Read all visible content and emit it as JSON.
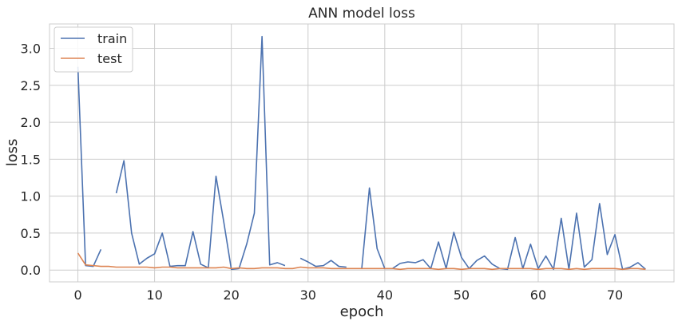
{
  "chart_data": {
    "type": "line",
    "title": "ANN model loss",
    "xlabel": "epoch",
    "ylabel": "loss",
    "xlim": [
      -3.7,
      77.7
    ],
    "ylim": [
      -0.16,
      3.33
    ],
    "xticks": [
      0,
      10,
      20,
      30,
      40,
      50,
      60,
      70
    ],
    "yticks": [
      0.0,
      0.5,
      1.0,
      1.5,
      2.0,
      2.5,
      3.0
    ],
    "ytick_labels": [
      "0.0",
      "0.5",
      "1.0",
      "1.5",
      "2.0",
      "2.5",
      "3.0"
    ],
    "grid": true,
    "legend": {
      "position": "top-left"
    },
    "series": [
      {
        "name": "train",
        "color": "#4c72b0",
        "values": [
          2.75,
          0.06,
          0.05,
          0.28,
          null,
          1.04,
          1.48,
          0.5,
          0.08,
          0.16,
          0.22,
          0.5,
          0.05,
          0.06,
          0.06,
          0.52,
          0.08,
          0.03,
          1.27,
          0.66,
          0.01,
          0.02,
          0.35,
          0.77,
          3.16,
          0.07,
          0.1,
          0.06,
          null,
          0.16,
          0.11,
          0.05,
          0.06,
          0.13,
          0.05,
          0.04,
          null,
          0.02,
          1.11,
          0.29,
          0.02,
          0.02,
          0.09,
          0.11,
          0.1,
          0.14,
          0.02,
          0.38,
          0.02,
          0.51,
          0.17,
          0.02,
          0.13,
          0.19,
          0.08,
          0.02,
          0.01,
          0.44,
          0.02,
          0.35,
          0.02,
          0.19,
          0.01,
          0.7,
          0.01,
          0.77,
          0.04,
          0.14,
          0.9,
          0.21,
          0.48,
          0.01,
          0.04,
          0.1,
          0.01
        ]
      },
      {
        "name": "test",
        "color": "#dd8452",
        "values": [
          0.23,
          0.07,
          0.06,
          0.05,
          0.05,
          0.04,
          0.04,
          0.04,
          0.04,
          0.04,
          0.03,
          0.04,
          0.04,
          0.03,
          0.03,
          0.03,
          0.03,
          0.03,
          0.03,
          0.04,
          0.02,
          0.03,
          0.02,
          0.02,
          0.03,
          0.03,
          0.03,
          0.02,
          0.02,
          0.04,
          0.03,
          0.03,
          0.03,
          0.02,
          0.02,
          0.02,
          0.02,
          0.02,
          0.02,
          0.02,
          0.02,
          0.02,
          0.01,
          0.02,
          0.02,
          0.02,
          0.02,
          0.01,
          0.02,
          0.02,
          0.01,
          0.02,
          0.02,
          0.02,
          0.01,
          0.02,
          0.02,
          0.02,
          0.02,
          0.02,
          0.01,
          0.02,
          0.02,
          0.02,
          0.01,
          0.02,
          0.01,
          0.02,
          0.02,
          0.02,
          0.02,
          0.01,
          0.02,
          0.02,
          0.01
        ]
      }
    ]
  }
}
